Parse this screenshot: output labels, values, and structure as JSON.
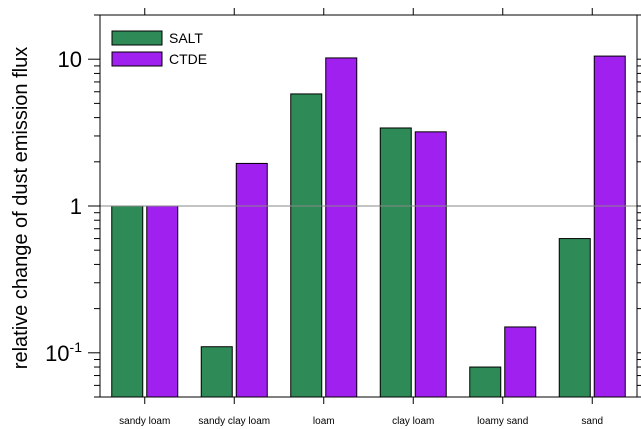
{
  "chart_data": {
    "type": "bar",
    "ylabel": "relative change of dust emission flux",
    "xlabel": "",
    "title": "",
    "yscale": "log",
    "ylim": [
      0.05,
      20
    ],
    "reference_line": 1,
    "ytick_labels": [
      {
        "value": 0.1,
        "base": "10",
        "exp": "-1"
      },
      {
        "value": 1,
        "base": "1",
        "exp": ""
      },
      {
        "value": 10,
        "base": "10",
        "exp": ""
      }
    ],
    "categories": [
      "sandy loam",
      "sandy clay loam",
      "loam",
      "clay loam",
      "loamy sand",
      "sand"
    ],
    "series": [
      {
        "name": "SALT",
        "color": "#2e8b57",
        "values": [
          1.0,
          0.11,
          5.8,
          3.4,
          0.08,
          0.6
        ]
      },
      {
        "name": "CTDE",
        "color": "#a020f0",
        "values": [
          1.0,
          1.95,
          10.2,
          3.2,
          0.15,
          10.5
        ]
      }
    ],
    "legend": "top-left",
    "grid": false
  }
}
